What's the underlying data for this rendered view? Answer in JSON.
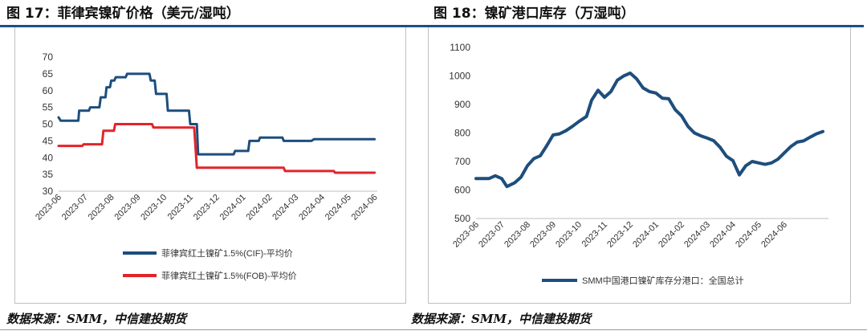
{
  "chart_data": [
    {
      "type": "line",
      "title": "图 17：菲律宾镍矿价格（美元/湿吨）",
      "ylim": [
        30,
        70
      ],
      "yticks": [
        30,
        35,
        40,
        45,
        50,
        55,
        60,
        65,
        70
      ],
      "xticks": [
        "2023-06",
        "2023-07",
        "2023-08",
        "2023-09",
        "2023-10",
        "2023-11",
        "2023-12",
        "2024-01",
        "2024-02",
        "2024-03",
        "2024-04",
        "2024-05",
        "2024-06"
      ],
      "grid": false,
      "legend_position": "bottom",
      "series": [
        {
          "name": "菲律宾红土镍矿1.5%(CIF)-平均价",
          "color": "#1d4e7d",
          "points": [
            [
              0,
              52
            ],
            [
              0.08,
              51
            ],
            [
              0.75,
              51
            ],
            [
              0.78,
              54
            ],
            [
              1.15,
              54
            ],
            [
              1.2,
              55
            ],
            [
              1.55,
              55
            ],
            [
              1.6,
              58
            ],
            [
              1.78,
              58
            ],
            [
              1.82,
              61
            ],
            [
              1.95,
              61
            ],
            [
              2.0,
              63
            ],
            [
              2.12,
              63
            ],
            [
              2.17,
              64
            ],
            [
              2.55,
              64
            ],
            [
              2.6,
              65
            ],
            [
              3.45,
              65
            ],
            [
              3.5,
              63
            ],
            [
              3.65,
              63
            ],
            [
              3.7,
              59
            ],
            [
              4.1,
              59
            ],
            [
              4.15,
              54
            ],
            [
              4.95,
              54
            ],
            [
              5.0,
              50
            ],
            [
              5.25,
              50
            ],
            [
              5.3,
              41
            ],
            [
              6.65,
              41
            ],
            [
              6.7,
              42
            ],
            [
              7.2,
              42
            ],
            [
              7.25,
              45
            ],
            [
              7.6,
              45
            ],
            [
              7.65,
              46
            ],
            [
              8.5,
              46
            ],
            [
              8.55,
              45
            ],
            [
              9.6,
              45
            ],
            [
              9.7,
              45.5
            ],
            [
              12.0,
              45.5
            ]
          ]
        },
        {
          "name": "菲律宾红土镍矿1.5%(FOB)-平均价",
          "color": "#e1252a",
          "points": [
            [
              0,
              43.5
            ],
            [
              0.9,
              43.5
            ],
            [
              0.95,
              44
            ],
            [
              1.65,
              44
            ],
            [
              1.7,
              48
            ],
            [
              2.1,
              48
            ],
            [
              2.15,
              50
            ],
            [
              3.55,
              50
            ],
            [
              3.6,
              49
            ],
            [
              5.15,
              49
            ],
            [
              5.25,
              37
            ],
            [
              8.55,
              37
            ],
            [
              8.6,
              36
            ],
            [
              10.45,
              36
            ],
            [
              10.5,
              35.5
            ],
            [
              12.0,
              35.5
            ]
          ]
        }
      ]
    },
    {
      "type": "line",
      "title": "图 18：镍矿港口库存（万湿吨）",
      "ylim": [
        500,
        1100
      ],
      "yticks": [
        500,
        600,
        700,
        800,
        900,
        1000,
        1100
      ],
      "xticks": [
        "2023-06",
        "2023-07",
        "2023-08",
        "2023-09",
        "2023-10",
        "2023-11",
        "2023-12",
        "2024-01",
        "2024-02",
        "2024-03",
        "2024-04",
        "2024-05",
        "2024-06"
      ],
      "grid": false,
      "legend_position": "bottom",
      "series": [
        {
          "name": "SMM中国港口镍矿库存分港口：全国总计",
          "color": "#1d4e7d",
          "points": [
            [
              0,
              640
            ],
            [
              0.5,
              640
            ],
            [
              0.75,
              650
            ],
            [
              1.0,
              640
            ],
            [
              1.2,
              612
            ],
            [
              1.5,
              625
            ],
            [
              1.75,
              645
            ],
            [
              2.0,
              685
            ],
            [
              2.25,
              710
            ],
            [
              2.5,
              720
            ],
            [
              2.75,
              755
            ],
            [
              3.0,
              793
            ],
            [
              3.25,
              797
            ],
            [
              3.5,
              808
            ],
            [
              3.75,
              823
            ],
            [
              4.0,
              840
            ],
            [
              4.3,
              858
            ],
            [
              4.5,
              915
            ],
            [
              4.75,
              950
            ],
            [
              5.0,
              925
            ],
            [
              5.25,
              945
            ],
            [
              5.5,
              985
            ],
            [
              5.75,
              1000
            ],
            [
              6.0,
              1010
            ],
            [
              6.25,
              990
            ],
            [
              6.5,
              958
            ],
            [
              6.75,
              945
            ],
            [
              7.0,
              940
            ],
            [
              7.25,
              922
            ],
            [
              7.5,
              920
            ],
            [
              7.75,
              882
            ],
            [
              8.0,
              860
            ],
            [
              8.25,
              823
            ],
            [
              8.5,
              800
            ],
            [
              8.75,
              790
            ],
            [
              9.0,
              782
            ],
            [
              9.25,
              773
            ],
            [
              9.5,
              750
            ],
            [
              9.75,
              718
            ],
            [
              10.0,
              703
            ],
            [
              10.25,
              653
            ],
            [
              10.5,
              685
            ],
            [
              10.75,
              700
            ],
            [
              11.0,
              695
            ],
            [
              11.25,
              690
            ],
            [
              11.5,
              695
            ],
            [
              11.75,
              708
            ],
            [
              12.0,
              730
            ],
            [
              12.25,
              752
            ],
            [
              12.5,
              768
            ],
            [
              12.75,
              772
            ],
            [
              13.0,
              785
            ],
            [
              13.25,
              797
            ],
            [
              13.5,
              805
            ]
          ]
        }
      ]
    }
  ],
  "source_label": "数据来源：SMM，中信建投期货"
}
